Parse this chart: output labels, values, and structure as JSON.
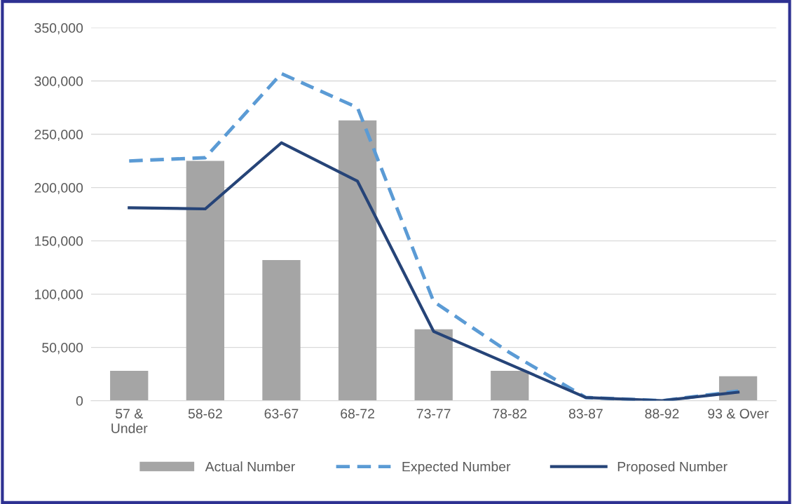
{
  "chart_data": {
    "type": "bar",
    "categories": [
      "57 &\nUnder",
      "58-62",
      "63-67",
      "68-72",
      "73-77",
      "78-82",
      "83-87",
      "88-92",
      "93 & Over"
    ],
    "series": [
      {
        "name": "Actual Number",
        "color": "#a5a5a5",
        "values": [
          28000,
          225000,
          132000,
          263000,
          67000,
          28000,
          null,
          0,
          23000
        ]
      },
      {
        "name": "Expected Number",
        "type": "line",
        "line_style": "dashed",
        "color": "#5b9bd5",
        "values": [
          225000,
          228000,
          307000,
          275000,
          93000,
          45000,
          3000,
          0,
          9000
        ]
      },
      {
        "name": "Proposed Number",
        "type": "line",
        "line_style": "solid",
        "color": "#264478",
        "values": [
          181000,
          180000,
          242000,
          206000,
          65000,
          34000,
          3000,
          0,
          8000
        ]
      }
    ],
    "ylim": [
      0,
      350000
    ],
    "yticks": [
      {
        "value": 0,
        "label": "0"
      },
      {
        "value": 50000,
        "label": "50,000"
      },
      {
        "value": 100000,
        "label": "100,000"
      },
      {
        "value": 150000,
        "label": "150,000"
      },
      {
        "value": 200000,
        "label": "200,000"
      },
      {
        "value": 250000,
        "label": "250,000"
      },
      {
        "value": 300000,
        "label": "300,000"
      },
      {
        "value": 350000,
        "label": "350,000"
      }
    ],
    "grid": "y",
    "legend": "bottom"
  }
}
